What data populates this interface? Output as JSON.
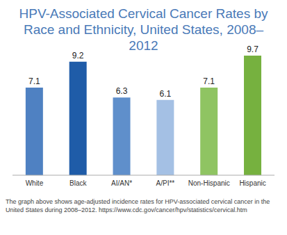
{
  "chart_data": {
    "type": "bar",
    "title": "HPV-Associated Cervical Cancer Rates by Race and Ethnicity, United States, 2008–2012",
    "categories": [
      "White",
      "Black",
      "AI/AN*",
      "A/PI**",
      "Non-Hispanic",
      "Hispanic"
    ],
    "values": [
      7.1,
      9.2,
      6.3,
      6.1,
      7.1,
      9.7
    ],
    "colors": [
      "#4f81c2",
      "#1f5ca8",
      "#5f8fcb",
      "#a4c0e4",
      "#8fc462",
      "#76b13f"
    ],
    "data_labels": true,
    "tick_labels": "x",
    "grid": false,
    "annotations": [
      "The graph above shows age-adjusted incidence rates for HPV-associated cervical cancer in the United States during 2008–2012. https://www.cdc.gov/cancer/hpv/statistics/cervical.htm"
    ]
  }
}
